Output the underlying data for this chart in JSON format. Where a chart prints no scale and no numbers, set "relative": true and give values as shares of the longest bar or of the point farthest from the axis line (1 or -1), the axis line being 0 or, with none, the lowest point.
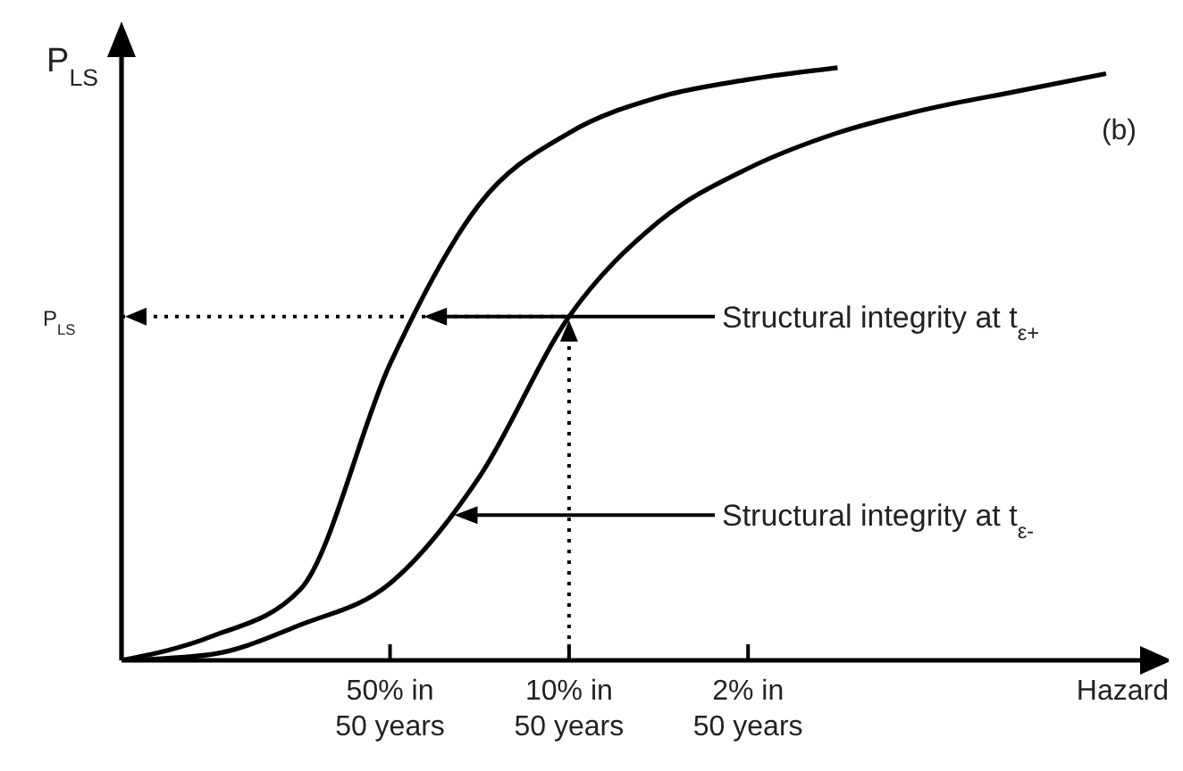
{
  "chart_data": {
    "type": "line",
    "relative": true,
    "ylabel": "P$_{LS}$",
    "xlabel": "Hazard",
    "categories": [
      null,
      null,
      null,
      "50% in 50 years",
      null,
      "10% in 50 years",
      null,
      "2% in 50 years",
      null,
      null,
      null,
      null
    ],
    "series": [
      {
        "color": "#000000",
        "values": [
          0,
          0.04,
          0.12,
          0.5,
          0.77,
          0.89,
          0.95,
          0.98,
          1,
          null,
          null,
          null
        ]
      },
      {
        "color": "#000000",
        "values": [
          0,
          0.01,
          0.06,
          0.13,
          0.31,
          0.58,
          0.74,
          0.83,
          0.89,
          0.93,
          0.96,
          0.99
        ]
      }
    ],
    "ref_lines": [
      {
        "axis": "y",
        "value": 0.58,
        "label": "P$_{LS}$",
        "line_style": "dotted"
      },
      {
        "axis": "x",
        "value": "10% in 50 years",
        "line_style": "dotted"
      }
    ],
    "annotations": [
      "(b)",
      "Structural integrity at t$_{ε+}$",
      "Structural integrity at t$_{ε-}$"
    ]
  }
}
